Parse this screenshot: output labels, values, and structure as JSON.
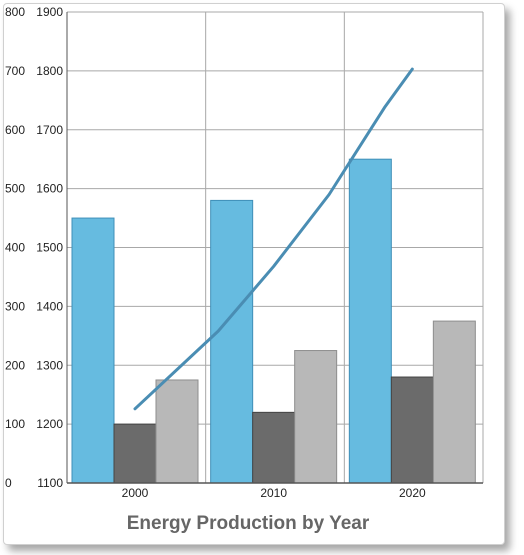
{
  "chart_data": {
    "type": "bar",
    "title": "Energy Production by Year",
    "categories": [
      "2000",
      "2010",
      "2020"
    ],
    "series": [
      {
        "values": [
          450,
          480,
          550
        ],
        "color": "#66bbe0",
        "stroke": "#3f8fb8",
        "axis": "left"
      },
      {
        "values": [
          100,
          120,
          180
        ],
        "color": "#6b6b6b",
        "stroke": "#444444",
        "axis": "left"
      },
      {
        "values": [
          175,
          225,
          275
        ],
        "color": "#b8b8b8",
        "stroke": "#8e8e8e",
        "axis": "left"
      },
      {
        "type": "line",
        "x": [
          0.0,
          0.6,
          1.0,
          1.4,
          1.8,
          2.0
        ],
        "values": [
          1226,
          1358,
          1468,
          1590,
          1738,
          1803
        ],
        "color": "#4a8db3",
        "axis": "right"
      }
    ],
    "left_axis": {
      "ylim": [
        0,
        800
      ],
      "ticks": [
        0,
        100,
        200,
        300,
        400,
        500,
        600,
        700,
        800
      ]
    },
    "right_axis": {
      "ylim": [
        1100,
        1900
      ],
      "ticks": [
        1100,
        1200,
        1300,
        1400,
        1500,
        1600,
        1700,
        1800,
        1900
      ]
    },
    "grid": true,
    "legend": "none"
  }
}
